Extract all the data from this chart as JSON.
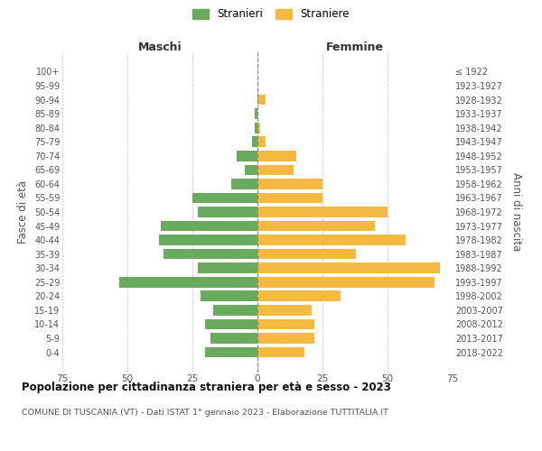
{
  "age_groups": [
    "0-4",
    "5-9",
    "10-14",
    "15-19",
    "20-24",
    "25-29",
    "30-34",
    "35-39",
    "40-44",
    "45-49",
    "50-54",
    "55-59",
    "60-64",
    "65-69",
    "70-74",
    "75-79",
    "80-84",
    "85-89",
    "90-94",
    "95-99",
    "100+"
  ],
  "birth_years": [
    "2018-2022",
    "2013-2017",
    "2008-2012",
    "2003-2007",
    "1998-2002",
    "1993-1997",
    "1988-1992",
    "1983-1987",
    "1978-1982",
    "1973-1977",
    "1968-1972",
    "1963-1967",
    "1958-1962",
    "1953-1957",
    "1948-1952",
    "1943-1947",
    "1938-1942",
    "1933-1937",
    "1928-1932",
    "1923-1927",
    "≤ 1922"
  ],
  "maschi": [
    20,
    18,
    20,
    17,
    22,
    53,
    23,
    36,
    38,
    37,
    23,
    25,
    10,
    5,
    8,
    2,
    1,
    1,
    0,
    0,
    0
  ],
  "femmine": [
    18,
    22,
    22,
    21,
    32,
    68,
    70,
    38,
    57,
    45,
    50,
    25,
    25,
    14,
    15,
    3,
    1,
    0,
    3,
    0,
    0
  ],
  "maschi_color": "#6aaa5e",
  "femmine_color": "#f5b942",
  "title": "Popolazione per cittadinanza straniera per età e sesso - 2023",
  "subtitle": "COMUNE DI TUSCANIA (VT) - Dati ISTAT 1° gennaio 2023 - Elaborazione TUTTITALIA.IT",
  "xlabel_left": "Maschi",
  "xlabel_right": "Femmine",
  "ylabel_left": "Fasce di età",
  "ylabel_right": "Anni di nascita",
  "legend_maschi": "Stranieri",
  "legend_femmine": "Straniere",
  "xlim": 75,
  "background_color": "#ffffff",
  "grid_color": "#cccccc",
  "dashed_line_color": "#888888"
}
